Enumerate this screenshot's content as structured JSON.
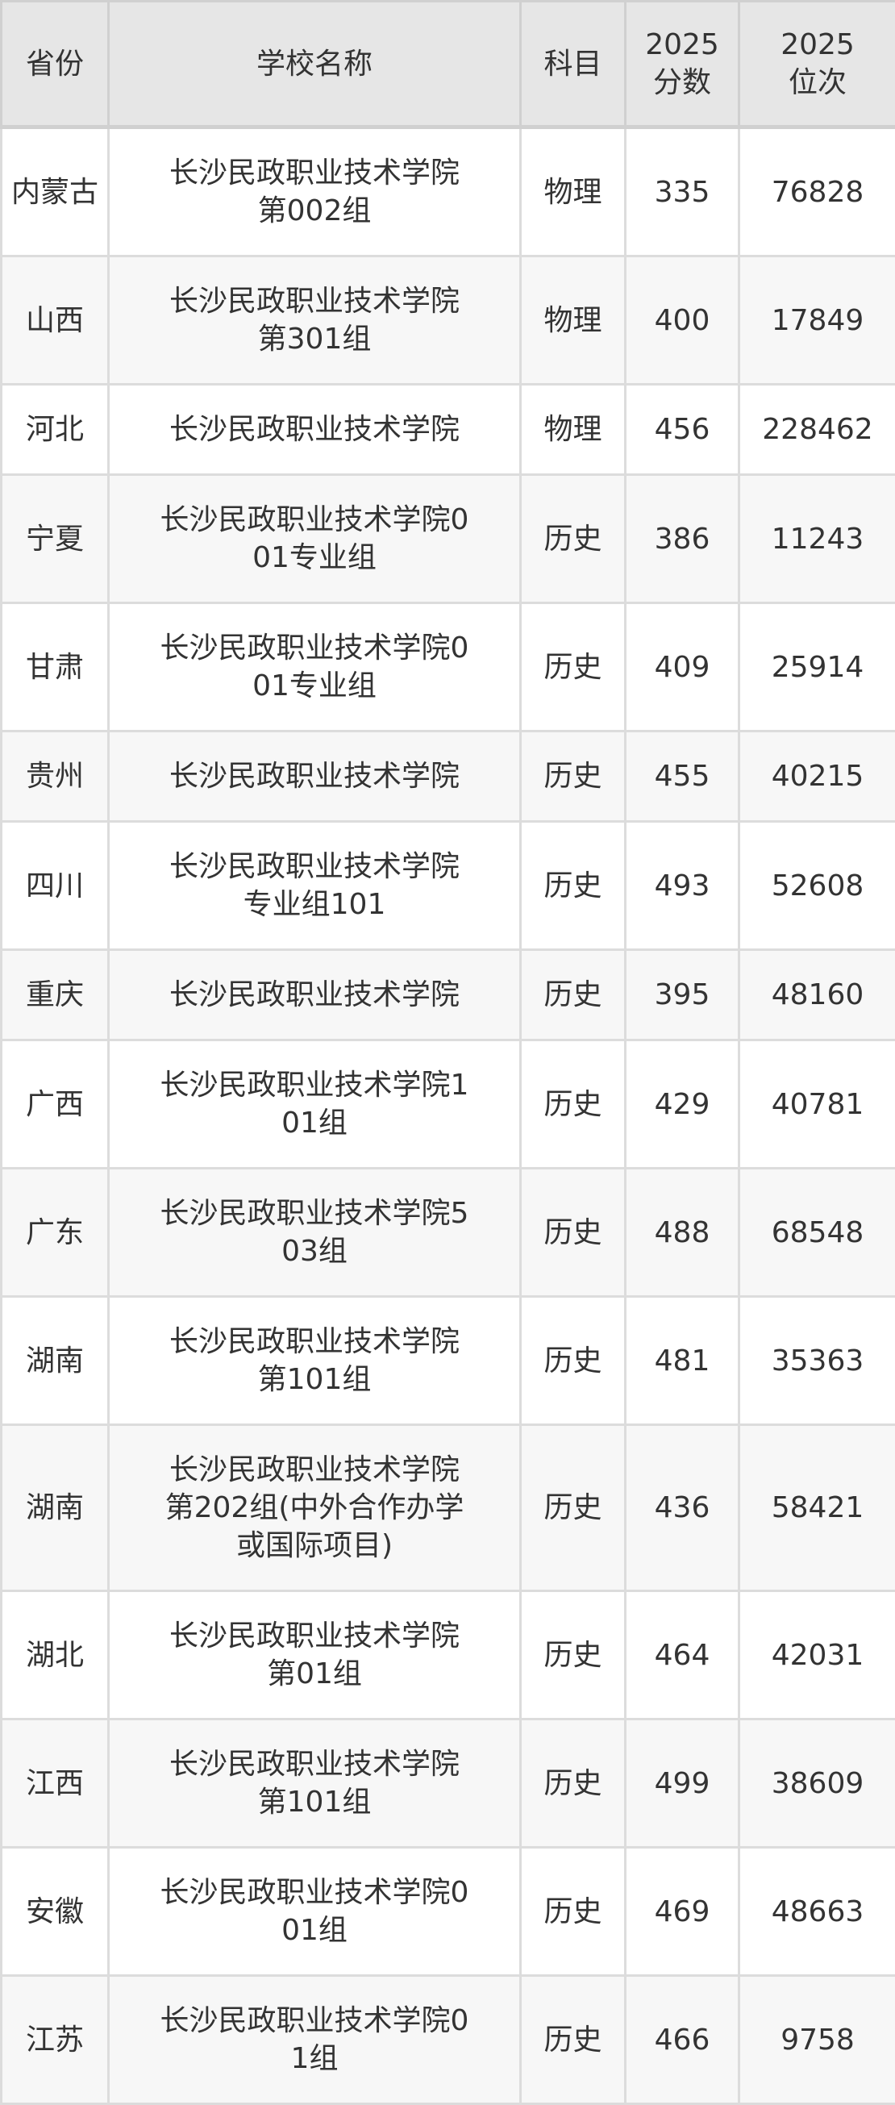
{
  "table": {
    "headers": [
      "省份",
      "学校名称",
      "科目",
      "2025分数",
      "2025位次"
    ],
    "header_lines": [
      [
        "省份"
      ],
      [
        "学校名称"
      ],
      [
        "科目"
      ],
      [
        "2025",
        "分数"
      ],
      [
        "2025",
        "位次"
      ]
    ],
    "rows": [
      {
        "province": "内蒙古",
        "school": "长沙民政职业技术学院第002组",
        "subject": "物理",
        "score": "335",
        "rank": "76828"
      },
      {
        "province": "山西",
        "school": "长沙民政职业技术学院第301组",
        "subject": "物理",
        "score": "400",
        "rank": "17849"
      },
      {
        "province": "河北",
        "school": "长沙民政职业技术学院",
        "subject": "物理",
        "score": "456",
        "rank": "228462"
      },
      {
        "province": "宁夏",
        "school": "长沙民政职业技术学院001专业组",
        "subject": "历史",
        "score": "386",
        "rank": "11243"
      },
      {
        "province": "甘肃",
        "school": "长沙民政职业技术学院001专业组",
        "subject": "历史",
        "score": "409",
        "rank": "25914"
      },
      {
        "province": "贵州",
        "school": "长沙民政职业技术学院",
        "subject": "历史",
        "score": "455",
        "rank": "40215"
      },
      {
        "province": "四川",
        "school": "长沙民政职业技术学院专业组101",
        "subject": "历史",
        "score": "493",
        "rank": "52608"
      },
      {
        "province": "重庆",
        "school": "长沙民政职业技术学院",
        "subject": "历史",
        "score": "395",
        "rank": "48160"
      },
      {
        "province": "广西",
        "school": "长沙民政职业技术学院101组",
        "subject": "历史",
        "score": "429",
        "rank": "40781"
      },
      {
        "province": "广东",
        "school": "长沙民政职业技术学院503组",
        "subject": "历史",
        "score": "488",
        "rank": "68548"
      },
      {
        "province": "湖南",
        "school": "长沙民政职业技术学院第101组",
        "subject": "历史",
        "score": "481",
        "rank": "35363"
      },
      {
        "province": "湖南",
        "school": "长沙民政职业技术学院第202组(中外合作办学或国际项目)",
        "subject": "历史",
        "score": "436",
        "rank": "58421"
      },
      {
        "province": "湖北",
        "school": "长沙民政职业技术学院第01组",
        "subject": "历史",
        "score": "464",
        "rank": "42031"
      },
      {
        "province": "江西",
        "school": "长沙民政职业技术学院第101组",
        "subject": "历史",
        "score": "499",
        "rank": "38609"
      },
      {
        "province": "安徽",
        "school": "长沙民政职业技术学院001组",
        "subject": "历史",
        "score": "469",
        "rank": "48663"
      },
      {
        "province": "江苏",
        "school": "长沙民政职业技术学院01组",
        "subject": "历史",
        "score": "466",
        "rank": "9758"
      }
    ]
  },
  "colors": {
    "header_bg": "#e6e6e6",
    "alt_row_bg": "#f7f7f7",
    "border": "#dcdcdc",
    "text": "#333333"
  }
}
